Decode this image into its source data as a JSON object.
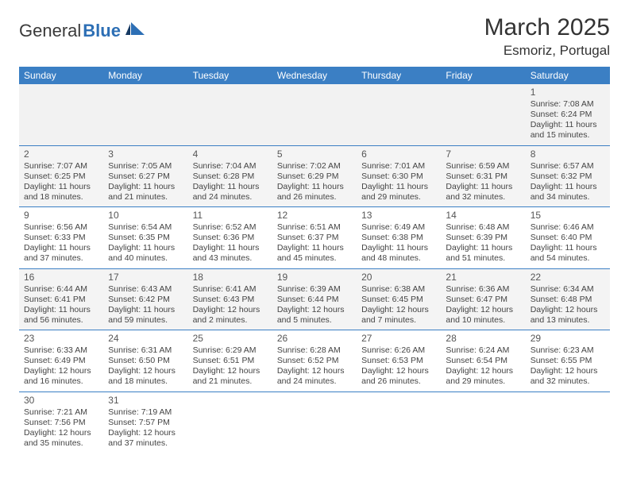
{
  "brand": {
    "part1": "General",
    "part2": "Blue"
  },
  "title": "March 2025",
  "location": "Esmoriz, Portugal",
  "colors": {
    "header_bg": "#3b7fc4",
    "header_fg": "#ffffff",
    "alt_row_bg": "#f4f4f4",
    "border": "#3b7fc4",
    "brand_blue": "#2d6fb5"
  },
  "weekdays": [
    "Sunday",
    "Monday",
    "Tuesday",
    "Wednesday",
    "Thursday",
    "Friday",
    "Saturday"
  ],
  "cells": [
    [
      null,
      null,
      null,
      null,
      null,
      null,
      {
        "n": "1",
        "sr": "Sunrise: 7:08 AM",
        "ss": "Sunset: 6:24 PM",
        "dl1": "Daylight: 11 hours",
        "dl2": "and 15 minutes."
      }
    ],
    [
      {
        "n": "2",
        "sr": "Sunrise: 7:07 AM",
        "ss": "Sunset: 6:25 PM",
        "dl1": "Daylight: 11 hours",
        "dl2": "and 18 minutes."
      },
      {
        "n": "3",
        "sr": "Sunrise: 7:05 AM",
        "ss": "Sunset: 6:27 PM",
        "dl1": "Daylight: 11 hours",
        "dl2": "and 21 minutes."
      },
      {
        "n": "4",
        "sr": "Sunrise: 7:04 AM",
        "ss": "Sunset: 6:28 PM",
        "dl1": "Daylight: 11 hours",
        "dl2": "and 24 minutes."
      },
      {
        "n": "5",
        "sr": "Sunrise: 7:02 AM",
        "ss": "Sunset: 6:29 PM",
        "dl1": "Daylight: 11 hours",
        "dl2": "and 26 minutes."
      },
      {
        "n": "6",
        "sr": "Sunrise: 7:01 AM",
        "ss": "Sunset: 6:30 PM",
        "dl1": "Daylight: 11 hours",
        "dl2": "and 29 minutes."
      },
      {
        "n": "7",
        "sr": "Sunrise: 6:59 AM",
        "ss": "Sunset: 6:31 PM",
        "dl1": "Daylight: 11 hours",
        "dl2": "and 32 minutes."
      },
      {
        "n": "8",
        "sr": "Sunrise: 6:57 AM",
        "ss": "Sunset: 6:32 PM",
        "dl1": "Daylight: 11 hours",
        "dl2": "and 34 minutes."
      }
    ],
    [
      {
        "n": "9",
        "sr": "Sunrise: 6:56 AM",
        "ss": "Sunset: 6:33 PM",
        "dl1": "Daylight: 11 hours",
        "dl2": "and 37 minutes."
      },
      {
        "n": "10",
        "sr": "Sunrise: 6:54 AM",
        "ss": "Sunset: 6:35 PM",
        "dl1": "Daylight: 11 hours",
        "dl2": "and 40 minutes."
      },
      {
        "n": "11",
        "sr": "Sunrise: 6:52 AM",
        "ss": "Sunset: 6:36 PM",
        "dl1": "Daylight: 11 hours",
        "dl2": "and 43 minutes."
      },
      {
        "n": "12",
        "sr": "Sunrise: 6:51 AM",
        "ss": "Sunset: 6:37 PM",
        "dl1": "Daylight: 11 hours",
        "dl2": "and 45 minutes."
      },
      {
        "n": "13",
        "sr": "Sunrise: 6:49 AM",
        "ss": "Sunset: 6:38 PM",
        "dl1": "Daylight: 11 hours",
        "dl2": "and 48 minutes."
      },
      {
        "n": "14",
        "sr": "Sunrise: 6:48 AM",
        "ss": "Sunset: 6:39 PM",
        "dl1": "Daylight: 11 hours",
        "dl2": "and 51 minutes."
      },
      {
        "n": "15",
        "sr": "Sunrise: 6:46 AM",
        "ss": "Sunset: 6:40 PM",
        "dl1": "Daylight: 11 hours",
        "dl2": "and 54 minutes."
      }
    ],
    [
      {
        "n": "16",
        "sr": "Sunrise: 6:44 AM",
        "ss": "Sunset: 6:41 PM",
        "dl1": "Daylight: 11 hours",
        "dl2": "and 56 minutes."
      },
      {
        "n": "17",
        "sr": "Sunrise: 6:43 AM",
        "ss": "Sunset: 6:42 PM",
        "dl1": "Daylight: 11 hours",
        "dl2": "and 59 minutes."
      },
      {
        "n": "18",
        "sr": "Sunrise: 6:41 AM",
        "ss": "Sunset: 6:43 PM",
        "dl1": "Daylight: 12 hours",
        "dl2": "and 2 minutes."
      },
      {
        "n": "19",
        "sr": "Sunrise: 6:39 AM",
        "ss": "Sunset: 6:44 PM",
        "dl1": "Daylight: 12 hours",
        "dl2": "and 5 minutes."
      },
      {
        "n": "20",
        "sr": "Sunrise: 6:38 AM",
        "ss": "Sunset: 6:45 PM",
        "dl1": "Daylight: 12 hours",
        "dl2": "and 7 minutes."
      },
      {
        "n": "21",
        "sr": "Sunrise: 6:36 AM",
        "ss": "Sunset: 6:47 PM",
        "dl1": "Daylight: 12 hours",
        "dl2": "and 10 minutes."
      },
      {
        "n": "22",
        "sr": "Sunrise: 6:34 AM",
        "ss": "Sunset: 6:48 PM",
        "dl1": "Daylight: 12 hours",
        "dl2": "and 13 minutes."
      }
    ],
    [
      {
        "n": "23",
        "sr": "Sunrise: 6:33 AM",
        "ss": "Sunset: 6:49 PM",
        "dl1": "Daylight: 12 hours",
        "dl2": "and 16 minutes."
      },
      {
        "n": "24",
        "sr": "Sunrise: 6:31 AM",
        "ss": "Sunset: 6:50 PM",
        "dl1": "Daylight: 12 hours",
        "dl2": "and 18 minutes."
      },
      {
        "n": "25",
        "sr": "Sunrise: 6:29 AM",
        "ss": "Sunset: 6:51 PM",
        "dl1": "Daylight: 12 hours",
        "dl2": "and 21 minutes."
      },
      {
        "n": "26",
        "sr": "Sunrise: 6:28 AM",
        "ss": "Sunset: 6:52 PM",
        "dl1": "Daylight: 12 hours",
        "dl2": "and 24 minutes."
      },
      {
        "n": "27",
        "sr": "Sunrise: 6:26 AM",
        "ss": "Sunset: 6:53 PM",
        "dl1": "Daylight: 12 hours",
        "dl2": "and 26 minutes."
      },
      {
        "n": "28",
        "sr": "Sunrise: 6:24 AM",
        "ss": "Sunset: 6:54 PM",
        "dl1": "Daylight: 12 hours",
        "dl2": "and 29 minutes."
      },
      {
        "n": "29",
        "sr": "Sunrise: 6:23 AM",
        "ss": "Sunset: 6:55 PM",
        "dl1": "Daylight: 12 hours",
        "dl2": "and 32 minutes."
      }
    ],
    [
      {
        "n": "30",
        "sr": "Sunrise: 7:21 AM",
        "ss": "Sunset: 7:56 PM",
        "dl1": "Daylight: 12 hours",
        "dl2": "and 35 minutes."
      },
      {
        "n": "31",
        "sr": "Sunrise: 7:19 AM",
        "ss": "Sunset: 7:57 PM",
        "dl1": "Daylight: 12 hours",
        "dl2": "and 37 minutes."
      },
      null,
      null,
      null,
      null,
      null
    ]
  ]
}
